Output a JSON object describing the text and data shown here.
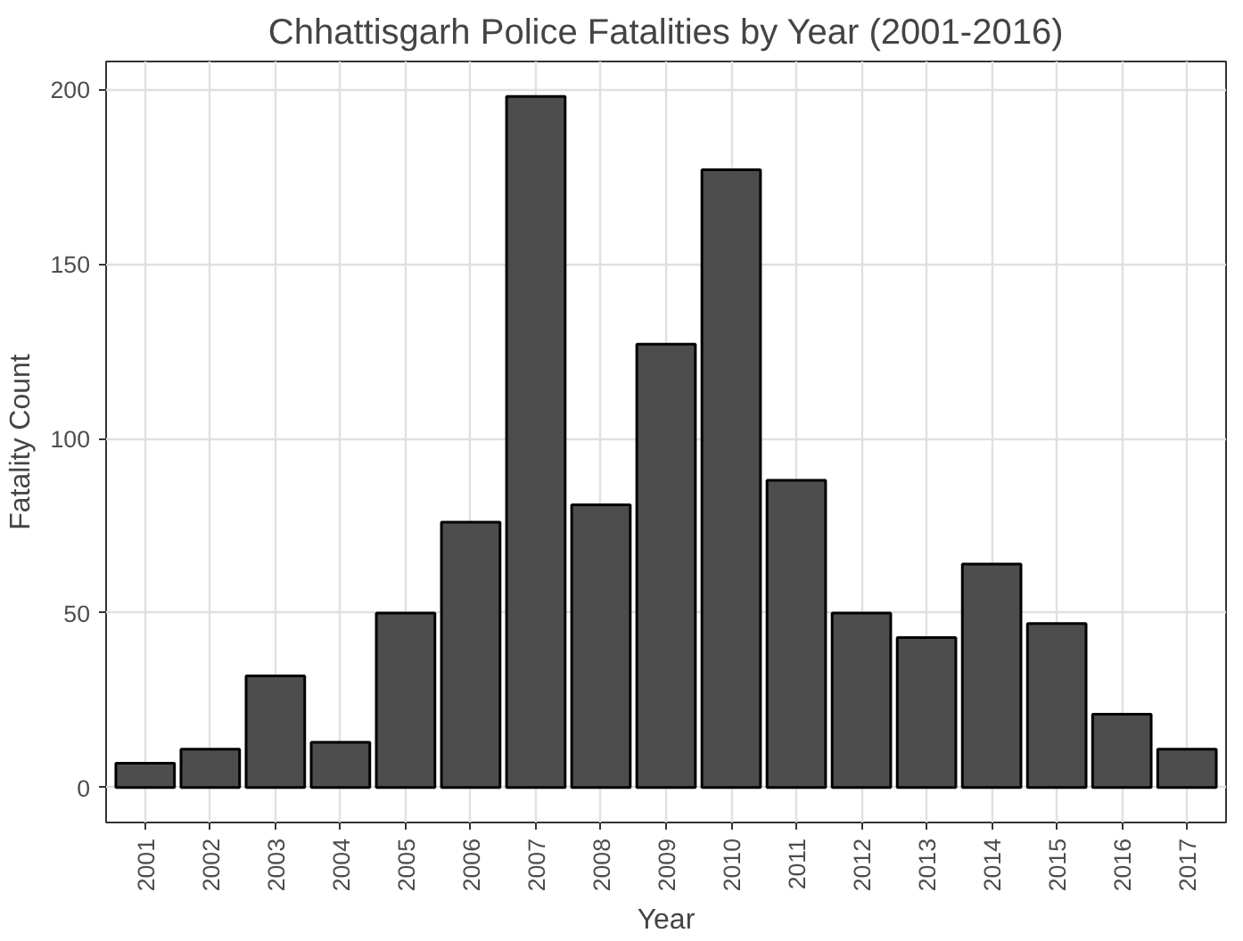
{
  "chart_data": {
    "type": "bar",
    "title": "Chhattisgarh Police Fatalities by Year (2001-2016)",
    "xlabel": "Year",
    "ylabel": "Fatality Count",
    "categories": [
      "2001",
      "2002",
      "2003",
      "2004",
      "2005",
      "2006",
      "2007",
      "2008",
      "2009",
      "2010",
      "2011",
      "2012",
      "2013",
      "2014",
      "2015",
      "2016",
      "2017"
    ],
    "values": [
      7,
      11,
      32,
      13,
      50,
      76,
      198,
      81,
      127,
      177,
      88,
      50,
      43,
      64,
      47,
      21,
      11
    ],
    "color": "#4d4d4d",
    "ylim": [
      -10,
      208
    ],
    "yticks": [
      0,
      50,
      100,
      150,
      200
    ],
    "grid": true
  }
}
